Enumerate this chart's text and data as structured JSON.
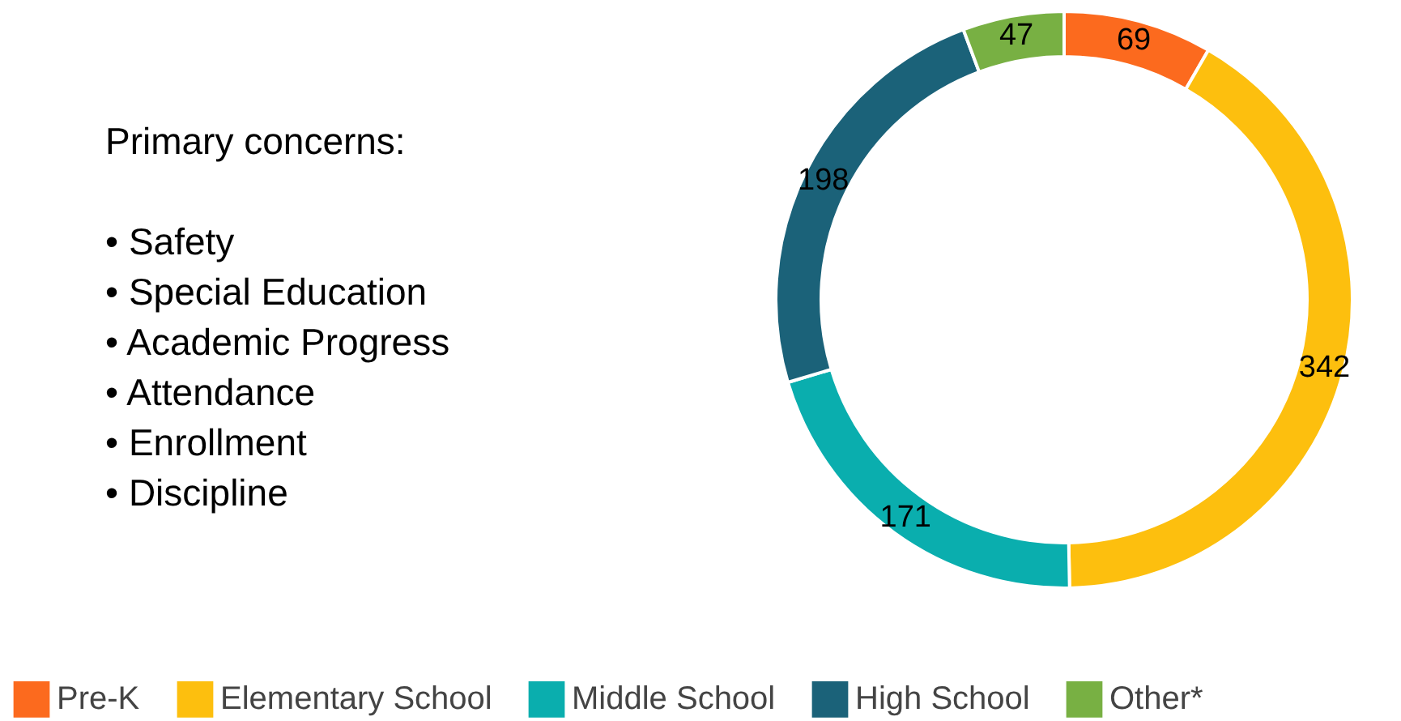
{
  "chart_data": {
    "type": "donut",
    "categories": [
      "Pre-K",
      "Elementary School",
      "Middle School",
      "High School",
      "Other*"
    ],
    "values": [
      69,
      342,
      171,
      198,
      47
    ],
    "colors": [
      "#fc6a1e",
      "#fdbf0e",
      "#0aaeae",
      "#1b6279",
      "#78b043"
    ],
    "data_labels": true,
    "legend": "bottom",
    "annotations": [
      "Primary concerns:",
      "• Safety",
      "• Special Education",
      "• Academic Progress",
      "• Attendance",
      "• Enrollment",
      "• Discipline"
    ]
  }
}
